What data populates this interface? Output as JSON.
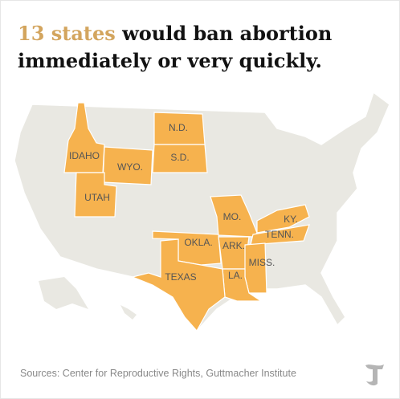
{
  "title": {
    "highlight": "13 states",
    "line1_rest": "would ban abortion",
    "line2": "immediately or very quickly."
  },
  "states": [
    {
      "label": "IDAHO"
    },
    {
      "label": "WYO."
    },
    {
      "label": "UTAH"
    },
    {
      "label": "N.D."
    },
    {
      "label": "S.D."
    },
    {
      "label": "MO."
    },
    {
      "label": "KY."
    },
    {
      "label": "TENN."
    },
    {
      "label": "OKLA."
    },
    {
      "label": "ARK."
    },
    {
      "label": "MISS."
    },
    {
      "label": "LA."
    },
    {
      "label": "TEXAS"
    }
  ],
  "source": "Sources: Center for Reproductive Rights, Guttmacher Institute"
}
